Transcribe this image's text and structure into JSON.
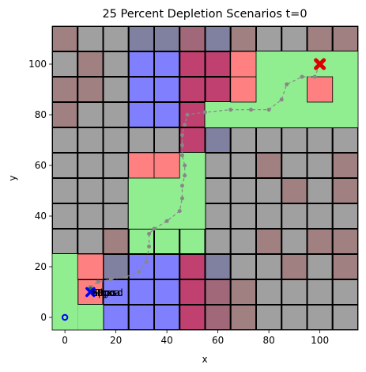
{
  "chart_data": {
    "type": "scatter",
    "title": "25 Percent Depletion Scenarios t=0",
    "xlabel": "x",
    "ylabel": "y",
    "xlim": [
      -5,
      115
    ],
    "ylim": [
      -5,
      115
    ],
    "xticks": [
      0,
      20,
      40,
      60,
      80,
      100
    ],
    "yticks": [
      0,
      20,
      40,
      60,
      80,
      100
    ],
    "grid": false,
    "cell_size": 10,
    "cell_colors": {
      "G": "#a0a0a0",
      "M": "#a08080",
      "S": "#8080a0",
      "B": "#8080ff",
      "D": "#c04070",
      "P": "#a06878",
      "R": "#ff8080",
      "L": "#90ee90",
      "N": "#a0a0a0"
    },
    "cell_rows": [
      "MGGSSPSMGGMM",
      "GMGBBDDRLLLL",
      "MMGBBDDRLLRL",
      "MGGBBDDLLLLL",
      "GGGGGDSGGGGG",
      "GGGDDDGGMGGM",
      "GGGRRLGGGMGM",
      "GGGLLLGGGGGG",
      "GGMLLLGGMGMM",
      "GGSBBDSGGMGM",
      "LRBBBDPMGGGG",
      "LNBBBDPMGGGG",
      "LLBDDBSMGMMG"
    ],
    "green_zones": [
      {
        "x": [
          -5,
          5
        ],
        "y": [
          -5,
          25
        ]
      },
      {
        "x": [
          5,
          15
        ],
        "y": [
          -5,
          5
        ]
      },
      {
        "x": [
          25,
          55
        ],
        "y": [
          35,
          55
        ]
      },
      {
        "x": [
          45,
          55
        ],
        "y": [
          55,
          65
        ]
      },
      {
        "x": [
          55,
          75
        ],
        "y": [
          75,
          85
        ]
      },
      {
        "x": [
          75,
          115
        ],
        "y": [
          75,
          105
        ]
      }
    ],
    "hazard_cells": [
      {
        "x": [
          5,
          15
        ],
        "y": [
          15,
          25
        ]
      },
      {
        "x": [
          25,
          35
        ],
        "y": [
          55,
          65
        ]
      },
      {
        "x": [
          35,
          45
        ],
        "y": [
          55,
          65
        ]
      },
      {
        "x": [
          65,
          75
        ],
        "y": [
          85,
          95
        ]
      },
      {
        "x": [
          65,
          75
        ],
        "y": [
          95,
          105
        ]
      },
      {
        "x": [
          95,
          105
        ],
        "y": [
          85,
          95
        ]
      }
    ],
    "path": {
      "color": "#888888",
      "points": [
        [
          10,
          12
        ],
        [
          13,
          14
        ],
        [
          18,
          15
        ],
        [
          24,
          16
        ],
        [
          29,
          18
        ],
        [
          32,
          22
        ],
        [
          33,
          28
        ],
        [
          33,
          33
        ],
        [
          35,
          35
        ],
        [
          40,
          38
        ],
        [
          45,
          42
        ],
        [
          46,
          47
        ],
        [
          46,
          52
        ],
        [
          47,
          56
        ],
        [
          47,
          60
        ],
        [
          46,
          64
        ],
        [
          46,
          68
        ],
        [
          46,
          72
        ],
        [
          47,
          76
        ],
        [
          48,
          80
        ],
        [
          55,
          81
        ],
        [
          65,
          82
        ],
        [
          73,
          82
        ],
        [
          80,
          82
        ],
        [
          85,
          86
        ],
        [
          87,
          92
        ],
        [
          93,
          95
        ],
        [
          98,
          95
        ],
        [
          100,
          100
        ]
      ]
    },
    "start": {
      "x": 0,
      "y": 0,
      "color": "#0000ff"
    },
    "goal": {
      "x": 100,
      "y": 100,
      "color": "#dd0000"
    },
    "agent": {
      "x": 10,
      "y": 10,
      "color": "#0000ff"
    },
    "markers": [
      {
        "x": 10,
        "y": 11,
        "color": "#1a7a1a"
      },
      {
        "x": 11,
        "y": 10,
        "color": "#0a0aa0"
      }
    ],
    "annotations": [
      {
        "text": "Pgoal",
        "x": 12,
        "y": 10
      },
      {
        "text": "Eppo",
        "x": 10,
        "y": 10
      },
      {
        "text": "Pbaso",
        "x": 11,
        "y": 10
      },
      {
        "text": "Sapo",
        "x": 10,
        "y": 10
      }
    ]
  }
}
